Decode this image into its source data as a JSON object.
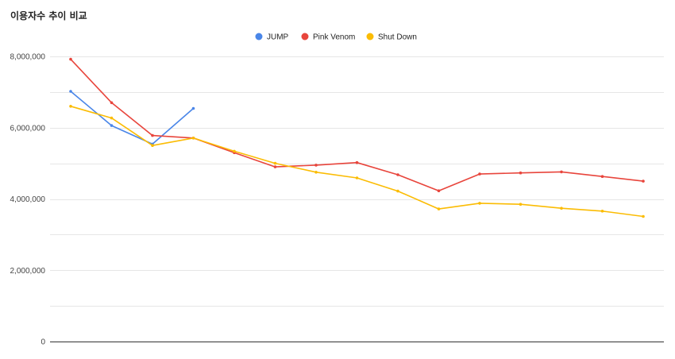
{
  "chart_data": {
    "type": "line",
    "title": "이용자수 추이 비교",
    "xlabel": "",
    "ylabel": "",
    "ylim": [
      0,
      8000000
    ],
    "yticks": [
      "8,000,000",
      "6,000,000",
      "4,000,000",
      "2,000,000",
      "0"
    ],
    "grid": true,
    "legend_position": "top",
    "x": [
      1,
      2,
      3,
      4,
      5,
      6,
      7,
      8,
      9,
      10,
      11,
      12,
      13,
      14,
      15
    ],
    "series": [
      {
        "name": "JUMP",
        "color": "#4a86e8",
        "values": [
          7020000,
          6060000,
          5540000,
          6540000,
          null,
          null,
          null,
          null,
          null,
          null,
          null,
          null,
          null,
          null,
          null
        ]
      },
      {
        "name": "Pink Venom",
        "color": "#e8453c",
        "values": [
          7920000,
          6700000,
          5780000,
          5710000,
          5300000,
          4900000,
          4950000,
          5020000,
          4680000,
          4230000,
          4700000,
          4730000,
          4760000,
          4630000,
          4500000
        ]
      },
      {
        "name": "Shut Down",
        "color": "#fbbc04",
        "values": [
          6600000,
          6270000,
          5500000,
          5710000,
          5340000,
          5000000,
          4750000,
          4590000,
          4220000,
          3720000,
          3880000,
          3850000,
          3740000,
          3660000,
          3510000
        ]
      }
    ]
  }
}
